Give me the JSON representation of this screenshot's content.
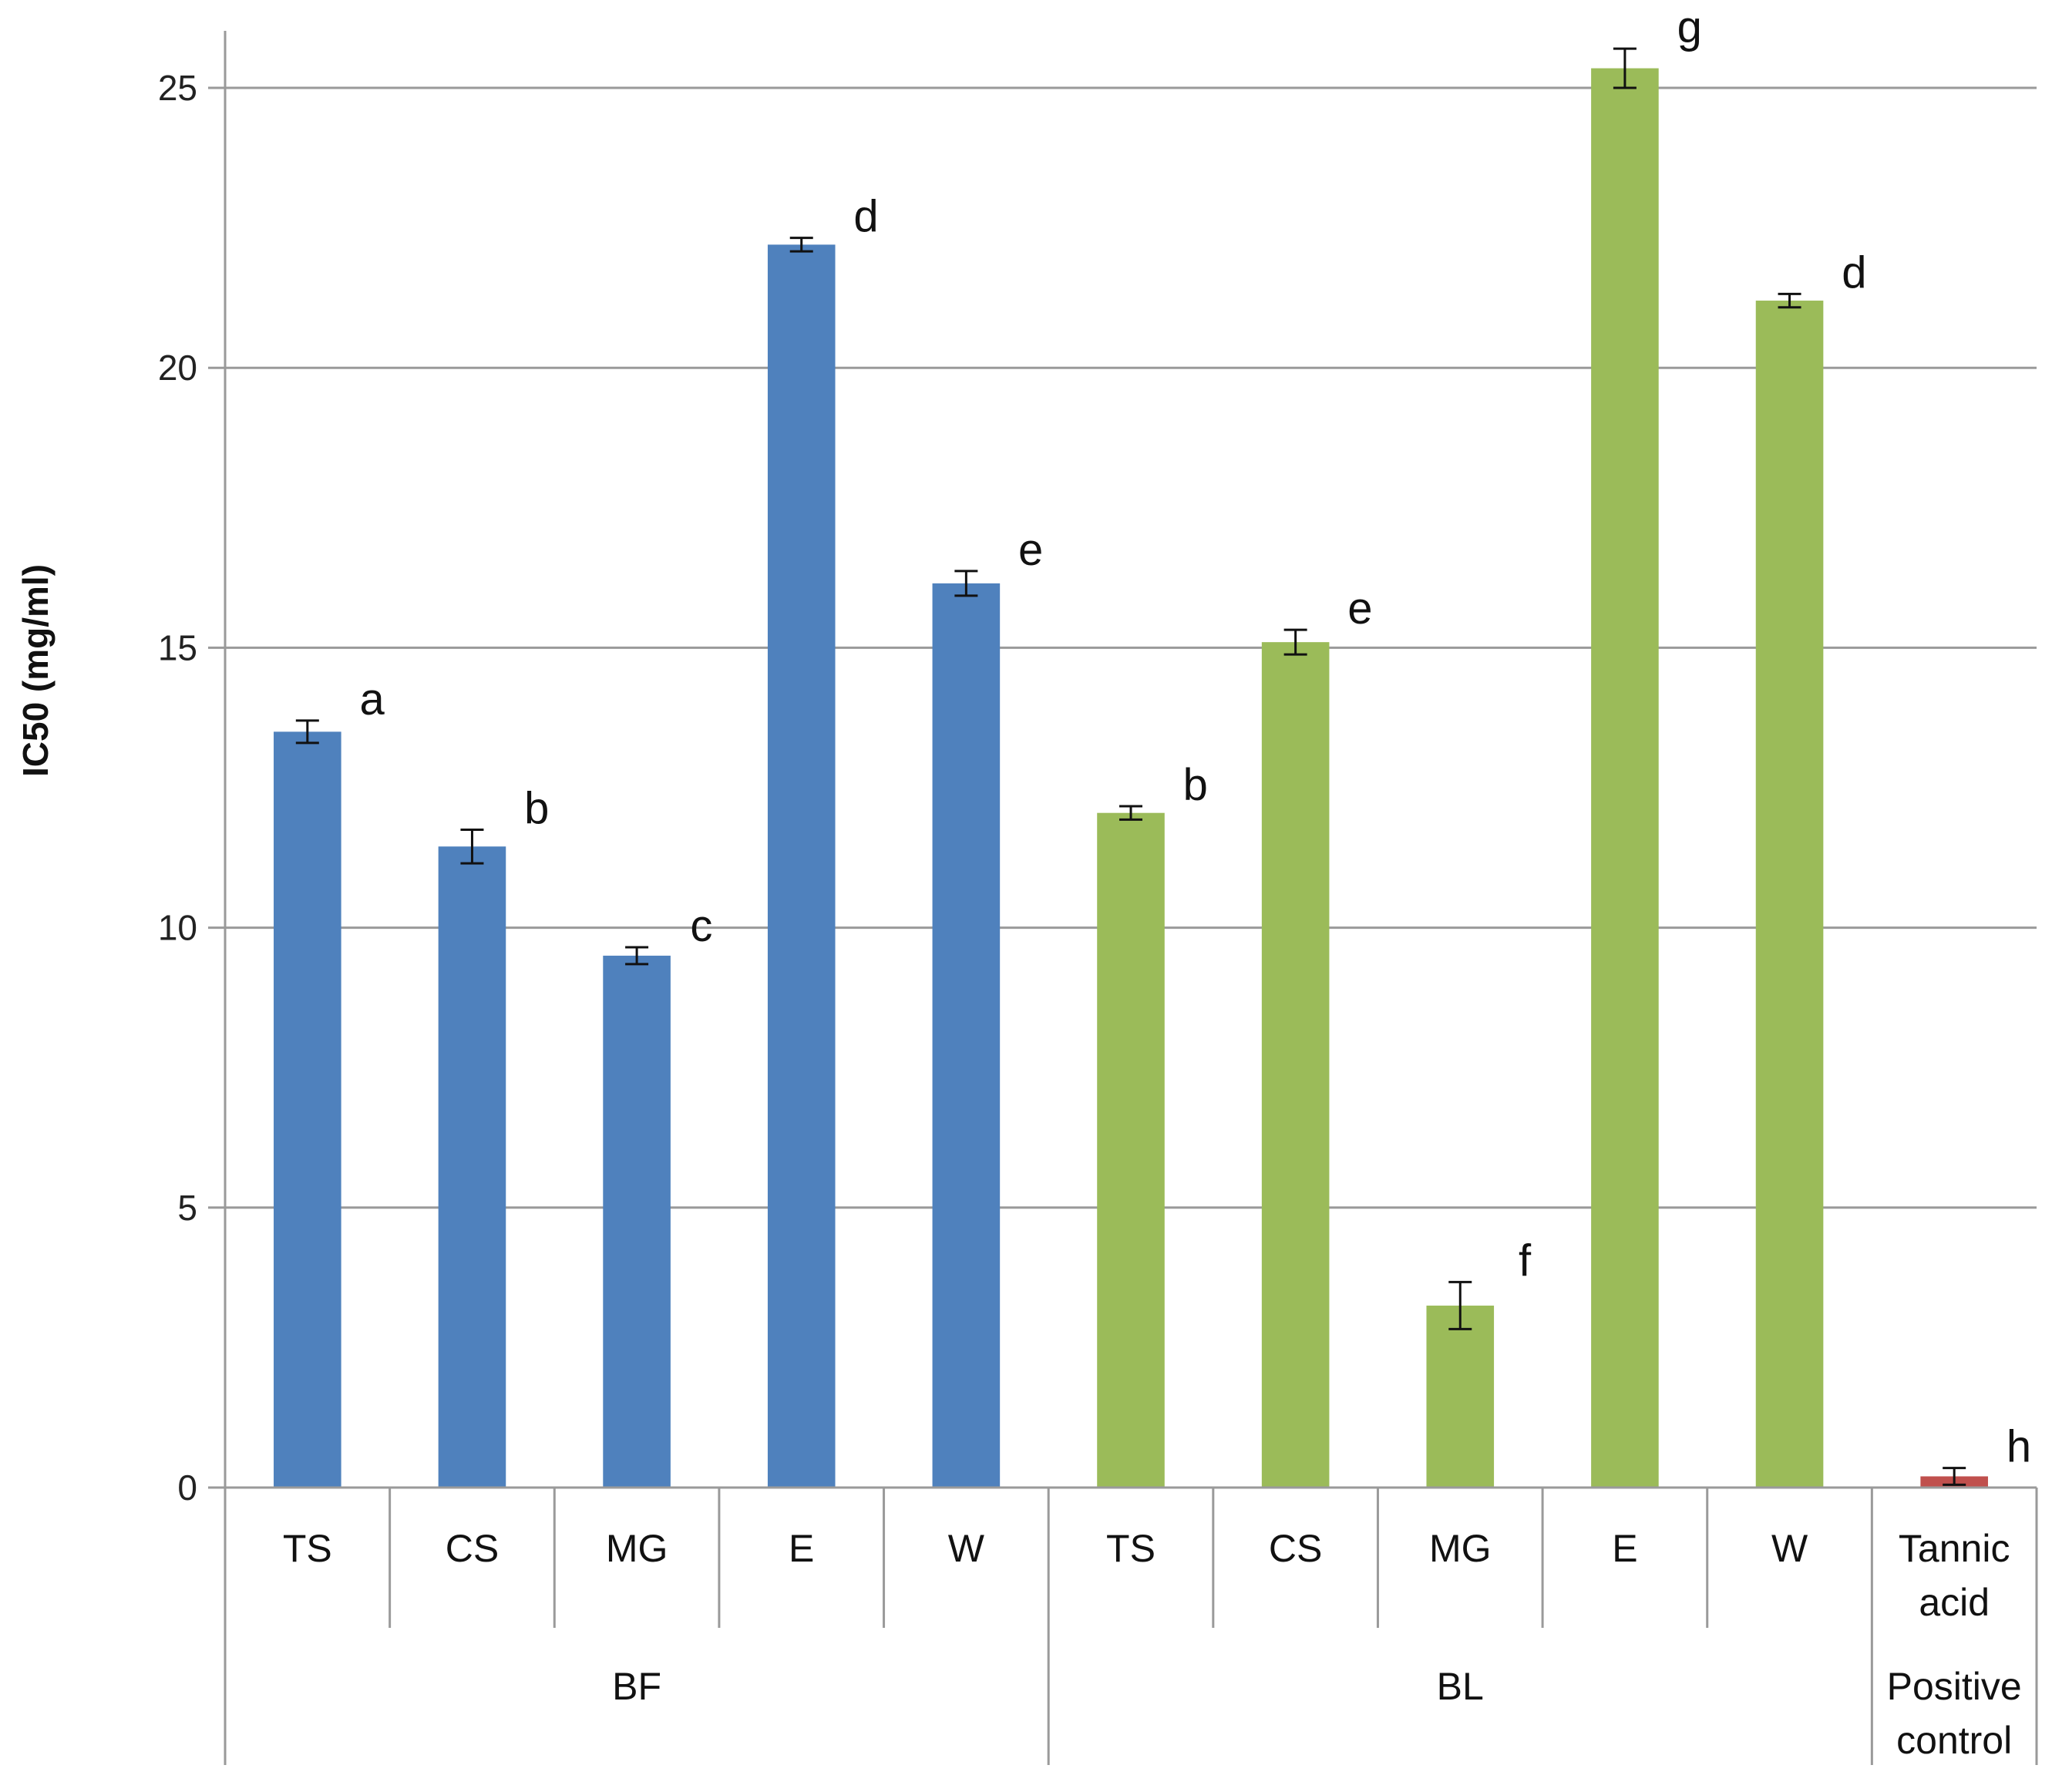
{
  "chart_data": {
    "type": "bar",
    "ylabel": "IC50 (mg/ml)",
    "ylim": [
      0,
      26
    ],
    "yticks": [
      0,
      5,
      10,
      15,
      20,
      25
    ],
    "grid": true,
    "colors": {
      "BF": "#4F81BD",
      "BL": "#9BBB59",
      "Positive control": "#C0504D"
    },
    "groups": [
      {
        "name": "BF",
        "categories": [
          "TS",
          "CS",
          "MG",
          "E",
          "W"
        ]
      },
      {
        "name": "BL",
        "categories": [
          "TS",
          "CS",
          "MG",
          "E",
          "W"
        ]
      },
      {
        "name": "Positive control",
        "lines": [
          "Positive",
          "control"
        ],
        "categories": [
          "Tannic acid"
        ]
      }
    ],
    "bars": [
      {
        "group": "BF",
        "category": "TS",
        "value": 13.5,
        "error": 0.2,
        "letter": "a"
      },
      {
        "group": "BF",
        "category": "CS",
        "value": 11.45,
        "error": 0.3,
        "letter": "b"
      },
      {
        "group": "BF",
        "category": "MG",
        "value": 9.5,
        "error": 0.15,
        "letter": "c"
      },
      {
        "group": "BF",
        "category": "E",
        "value": 22.2,
        "error": 0.12,
        "letter": "d"
      },
      {
        "group": "BF",
        "category": "W",
        "value": 16.15,
        "error": 0.22,
        "letter": "e"
      },
      {
        "group": "BL",
        "category": "TS",
        "value": 12.05,
        "error": 0.12,
        "letter": "b"
      },
      {
        "group": "BL",
        "category": "CS",
        "value": 15.1,
        "error": 0.22,
        "letter": "e"
      },
      {
        "group": "BL",
        "category": "MG",
        "value": 3.25,
        "error": 0.42,
        "letter": "f"
      },
      {
        "group": "BL",
        "category": "E",
        "value": 25.35,
        "error": 0.35,
        "letter": "g"
      },
      {
        "group": "BL",
        "category": "W",
        "value": 21.2,
        "error": 0.12,
        "letter": "d"
      },
      {
        "group": "Positive control",
        "category": "Tannic acid",
        "lines": [
          "Tannic",
          "acid"
        ],
        "value": 0.2,
        "error": 0.15,
        "letter": "h"
      }
    ]
  }
}
